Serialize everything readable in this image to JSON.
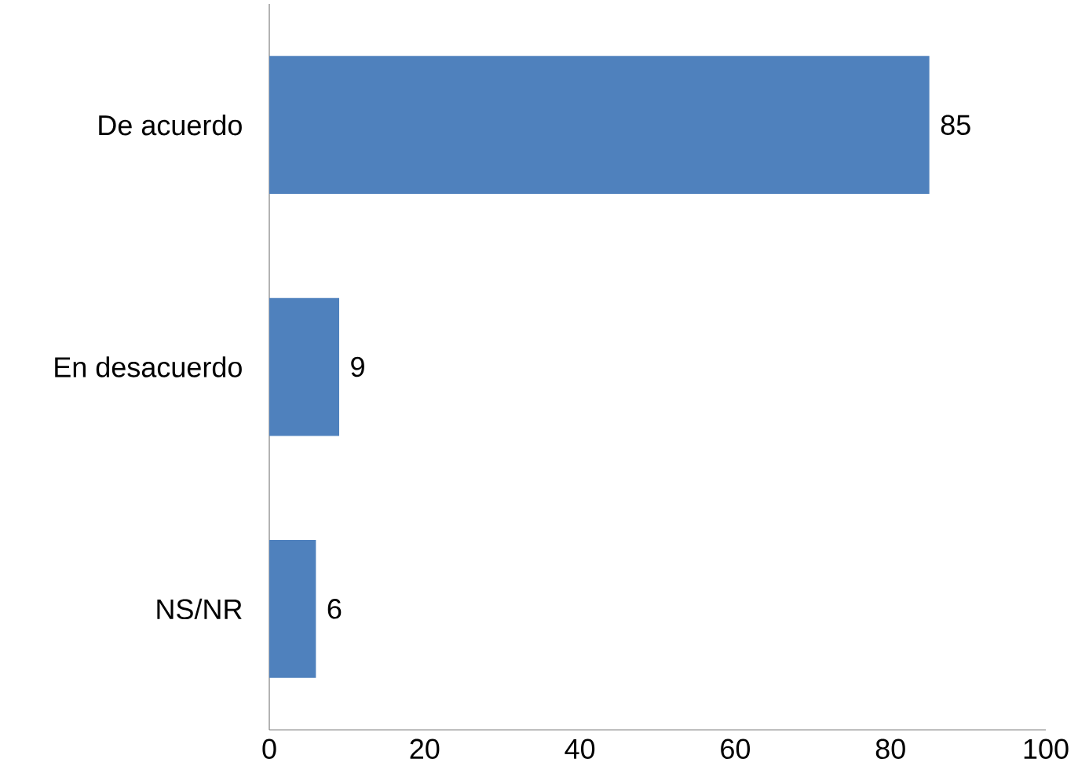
{
  "chart_data": {
    "type": "bar",
    "orientation": "horizontal",
    "categories": [
      "De acuerdo",
      "En desacuerdo",
      "NS/NR"
    ],
    "values": [
      85,
      9,
      6
    ],
    "color": "#4f81bd",
    "xlim": [
      0,
      100
    ],
    "xticks": [
      0,
      20,
      40,
      60,
      80,
      100
    ],
    "data_labels": true
  }
}
